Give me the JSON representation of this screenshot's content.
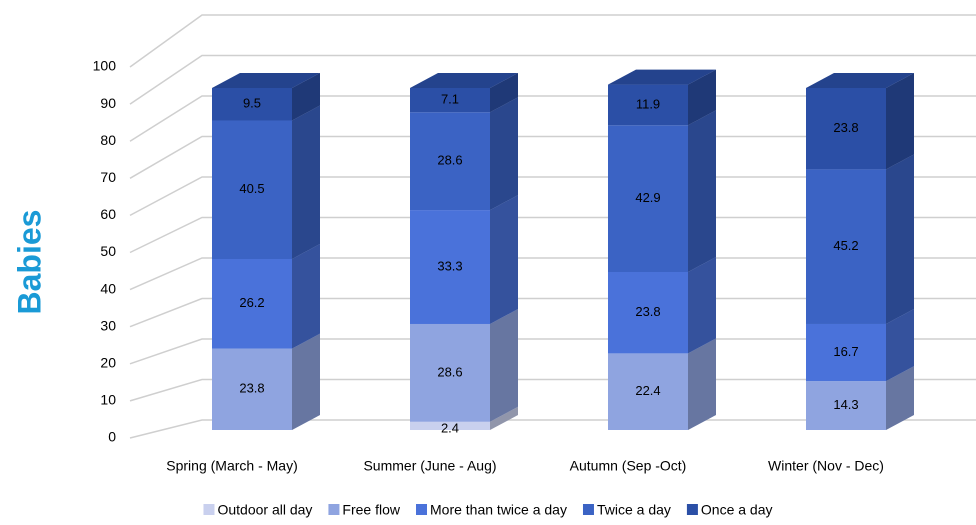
{
  "chart_data": {
    "type": "bar3d_stacked",
    "ylabel": "Babies",
    "categories": [
      "Spring (March - May)",
      "Summer (June - Aug)",
      "Autumn (Sep -Oct)",
      "Winter (Nov - Dec)"
    ],
    "series": [
      {
        "name": "Outdoor all day",
        "color": "#c9d0ee",
        "values": [
          0,
          2.4,
          0,
          0
        ]
      },
      {
        "name": "Free flow",
        "color": "#8fa4e0",
        "values": [
          23.8,
          28.6,
          22.4,
          14.3
        ]
      },
      {
        "name": "More than twice a day",
        "color": "#4a72da",
        "values": [
          26.2,
          33.3,
          23.8,
          16.7
        ]
      },
      {
        "name": "Twice a day",
        "color": "#3b63c4",
        "values": [
          40.5,
          28.6,
          42.9,
          45.2
        ]
      },
      {
        "name": "Once a day",
        "color": "#2b4fa6",
        "values": [
          9.5,
          7.1,
          11.9,
          23.8
        ]
      }
    ],
    "ylim": [
      0,
      100
    ],
    "yticks": [
      0,
      10,
      20,
      30,
      40,
      50,
      60,
      70,
      80,
      90,
      100
    ],
    "grid": true,
    "legend": "bottom"
  }
}
